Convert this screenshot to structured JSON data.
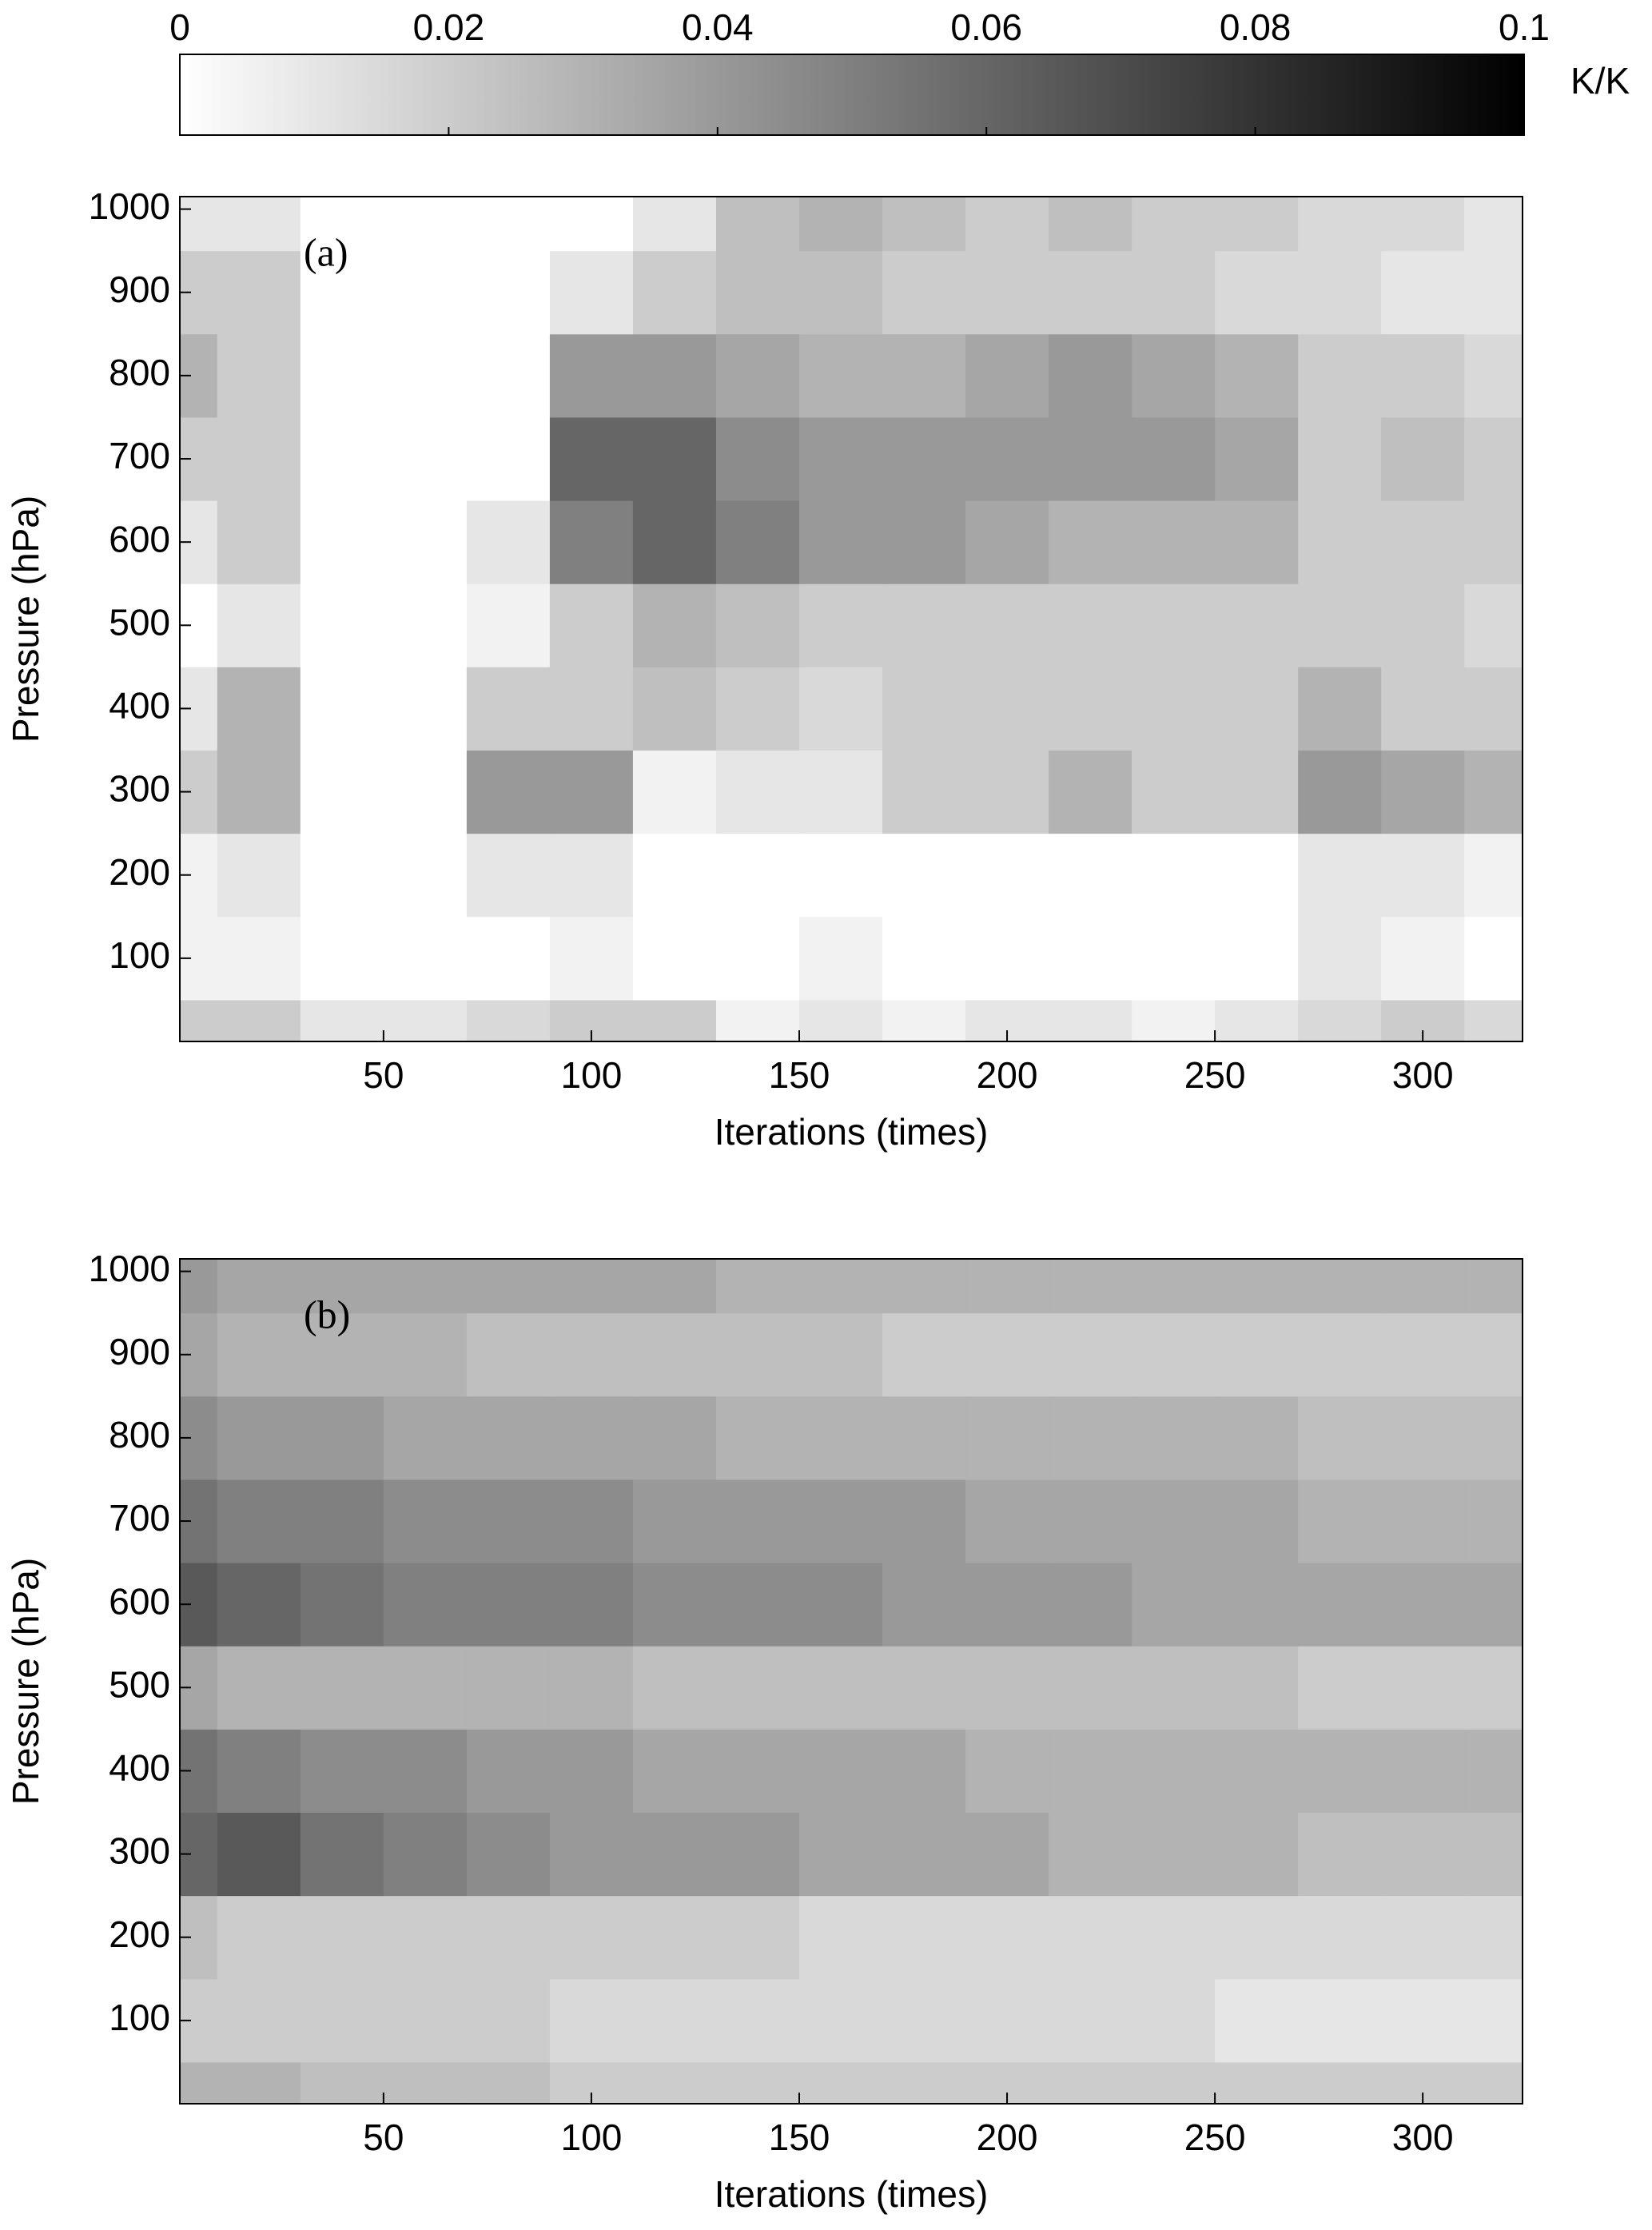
{
  "chart_data": [
    {
      "type": "heatmap",
      "annotation": "(a)",
      "xlabel": "Iterations (times)",
      "ylabel": "Pressure (hPa)",
      "xlim": [
        1,
        324
      ],
      "ylim": [
        0,
        1015
      ],
      "xticks": [
        50,
        100,
        150,
        200,
        250,
        300
      ],
      "yticks": [
        100,
        200,
        300,
        400,
        500,
        600,
        700,
        800,
        900,
        1000
      ],
      "colorbar": {
        "label": "K/K",
        "lim": [
          0,
          0.1
        ],
        "ticks": [
          0,
          0.02,
          0.04,
          0.06,
          0.08,
          0.1
        ],
        "colors": [
          "#ffffff",
          "#000000"
        ]
      },
      "x": [
        0,
        20,
        40,
        60,
        80,
        100,
        120,
        140,
        160,
        180,
        200,
        220,
        240,
        260,
        280,
        300,
        320
      ],
      "y": [
        0,
        100,
        200,
        300,
        400,
        500,
        600,
        700,
        800,
        900,
        1000
      ],
      "z": [
        [
          0.02,
          0.02,
          0.01,
          0.01,
          0.015,
          0.02,
          0.02,
          0.005,
          0.01,
          0.005,
          0.01,
          0.01,
          0.005,
          0.01,
          0.015,
          0.02,
          0.015
        ],
        [
          0.005,
          0.005,
          0,
          0,
          0,
          0.005,
          0,
          0,
          0.005,
          0,
          0,
          0,
          0,
          0,
          0.01,
          0.005,
          0
        ],
        [
          0.005,
          0.01,
          0,
          0,
          0.01,
          0.01,
          0,
          0,
          0,
          0,
          0,
          0,
          0,
          0,
          0.01,
          0.01,
          0.005
        ],
        [
          0.02,
          0.03,
          0,
          0,
          0.04,
          0.04,
          0.005,
          0.01,
          0.01,
          0.02,
          0.02,
          0.03,
          0.02,
          0.02,
          0.04,
          0.035,
          0.03
        ],
        [
          0.01,
          0.03,
          0,
          0,
          0.02,
          0.02,
          0.025,
          0.02,
          0.015,
          0.02,
          0.02,
          0.02,
          0.02,
          0.02,
          0.03,
          0.02,
          0.02
        ],
        [
          0,
          0.01,
          0,
          0,
          0.005,
          0.02,
          0.03,
          0.025,
          0.02,
          0.02,
          0.02,
          0.02,
          0.02,
          0.02,
          0.02,
          0.02,
          0.015
        ],
        [
          0.01,
          0.02,
          0,
          0,
          0.01,
          0.05,
          0.06,
          0.05,
          0.04,
          0.04,
          0.035,
          0.03,
          0.03,
          0.03,
          0.02,
          0.02,
          0.02
        ],
        [
          0.02,
          0.02,
          0,
          0,
          0,
          0.06,
          0.06,
          0.045,
          0.04,
          0.04,
          0.04,
          0.04,
          0.04,
          0.035,
          0.02,
          0.025,
          0.02
        ],
        [
          0.03,
          0.02,
          0,
          0,
          0,
          0.04,
          0.04,
          0.035,
          0.03,
          0.03,
          0.035,
          0.04,
          0.035,
          0.03,
          0.02,
          0.02,
          0.015
        ],
        [
          0.02,
          0.02,
          0,
          0,
          0,
          0.01,
          0.02,
          0.025,
          0.025,
          0.02,
          0.02,
          0.02,
          0.02,
          0.015,
          0.015,
          0.01,
          0.01
        ],
        [
          0.01,
          0.01,
          0,
          0,
          0,
          0,
          0.01,
          0.025,
          0.03,
          0.025,
          0.02,
          0.025,
          0.02,
          0.02,
          0.015,
          0.015,
          0.01
        ]
      ]
    },
    {
      "type": "heatmap",
      "annotation": "(b)",
      "xlabel": "Iterations (times)",
      "ylabel": "Pressure (hPa)",
      "xlim": [
        1,
        324
      ],
      "ylim": [
        0,
        1015
      ],
      "xticks": [
        50,
        100,
        150,
        200,
        250,
        300
      ],
      "yticks": [
        100,
        200,
        300,
        400,
        500,
        600,
        700,
        800,
        900,
        1000
      ],
      "x": [
        0,
        20,
        40,
        60,
        80,
        100,
        120,
        140,
        160,
        180,
        200,
        220,
        240,
        260,
        280,
        300,
        320
      ],
      "y": [
        0,
        100,
        200,
        300,
        400,
        500,
        600,
        700,
        800,
        900,
        1000
      ],
      "z": [
        [
          0.03,
          0.03,
          0.025,
          0.025,
          0.025,
          0.02,
          0.02,
          0.02,
          0.02,
          0.02,
          0.02,
          0.02,
          0.02,
          0.02,
          0.02,
          0.02,
          0.02
        ],
        [
          0.02,
          0.02,
          0.02,
          0.02,
          0.02,
          0.015,
          0.015,
          0.015,
          0.015,
          0.015,
          0.015,
          0.015,
          0.015,
          0.01,
          0.01,
          0.01,
          0.01
        ],
        [
          0.025,
          0.02,
          0.02,
          0.02,
          0.02,
          0.02,
          0.02,
          0.02,
          0.015,
          0.015,
          0.015,
          0.015,
          0.015,
          0.015,
          0.015,
          0.015,
          0.015
        ],
        [
          0.06,
          0.065,
          0.055,
          0.05,
          0.045,
          0.04,
          0.04,
          0.04,
          0.035,
          0.035,
          0.035,
          0.03,
          0.03,
          0.03,
          0.025,
          0.025,
          0.025
        ],
        [
          0.055,
          0.05,
          0.045,
          0.045,
          0.04,
          0.04,
          0.035,
          0.035,
          0.035,
          0.035,
          0.03,
          0.03,
          0.03,
          0.03,
          0.03,
          0.03,
          0.03
        ],
        [
          0.035,
          0.03,
          0.03,
          0.03,
          0.03,
          0.03,
          0.025,
          0.025,
          0.025,
          0.025,
          0.025,
          0.025,
          0.025,
          0.025,
          0.02,
          0.02,
          0.02
        ],
        [
          0.065,
          0.06,
          0.055,
          0.05,
          0.05,
          0.05,
          0.045,
          0.045,
          0.045,
          0.04,
          0.04,
          0.04,
          0.035,
          0.035,
          0.035,
          0.035,
          0.035
        ],
        [
          0.055,
          0.05,
          0.05,
          0.045,
          0.045,
          0.045,
          0.04,
          0.04,
          0.04,
          0.04,
          0.035,
          0.035,
          0.035,
          0.035,
          0.03,
          0.03,
          0.03
        ],
        [
          0.045,
          0.04,
          0.04,
          0.035,
          0.035,
          0.035,
          0.035,
          0.03,
          0.03,
          0.03,
          0.03,
          0.03,
          0.03,
          0.03,
          0.025,
          0.025,
          0.025
        ],
        [
          0.035,
          0.03,
          0.03,
          0.03,
          0.025,
          0.025,
          0.025,
          0.025,
          0.025,
          0.02,
          0.02,
          0.02,
          0.02,
          0.02,
          0.02,
          0.02,
          0.02
        ],
        [
          0.04,
          0.035,
          0.035,
          0.035,
          0.035,
          0.035,
          0.035,
          0.03,
          0.03,
          0.03,
          0.03,
          0.03,
          0.03,
          0.03,
          0.03,
          0.03,
          0.03
        ]
      ]
    }
  ]
}
